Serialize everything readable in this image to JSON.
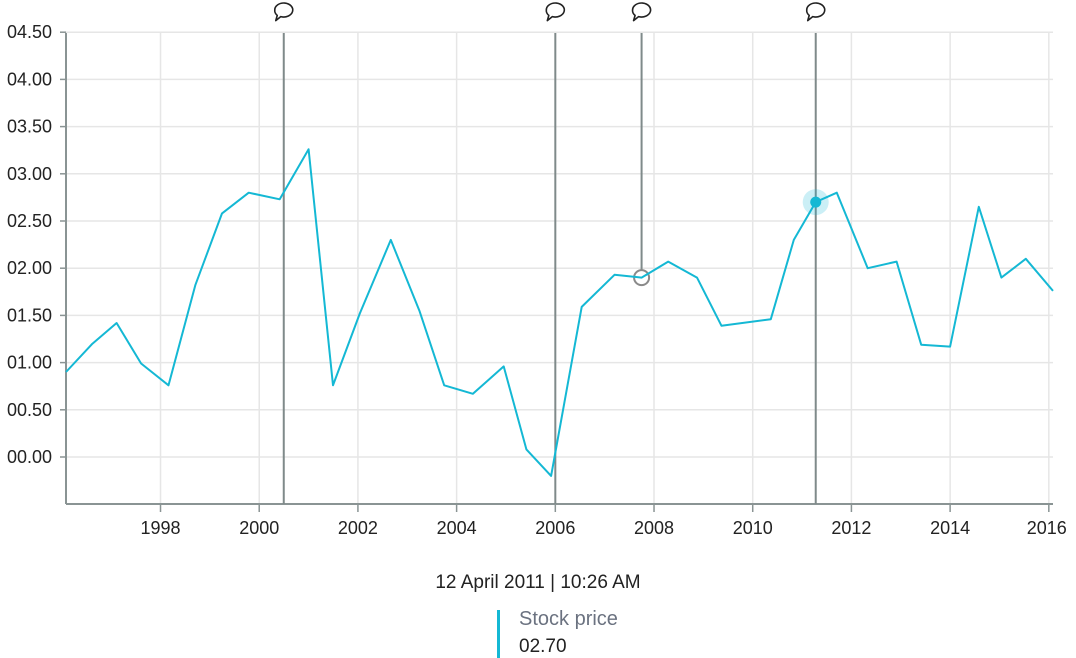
{
  "chart_data": {
    "type": "line",
    "title": "",
    "xlabel": "",
    "ylabel": "",
    "x_ticks": [
      "1998",
      "2000",
      "2002",
      "2004",
      "2006",
      "2008",
      "2010",
      "2012",
      "2014",
      "2016"
    ],
    "y_ticks": [
      "00.00",
      "00.50",
      "01.00",
      "01.50",
      "02.00",
      "02.50",
      "03.00",
      "03.50",
      "04.00",
      "04.50"
    ],
    "xlim": [
      "1996-02-01",
      "2016-02-01"
    ],
    "ylim": [
      -0.5,
      4.5
    ],
    "grid": true,
    "series": [
      {
        "name": "Stock price",
        "color": "#14b8d4",
        "points": [
          {
            "x": "1996-02-01",
            "y": 0.9
          },
          {
            "x": "1996-08-15",
            "y": 1.2
          },
          {
            "x": "1997-02-10",
            "y": 1.42
          },
          {
            "x": "1997-08-10",
            "y": 0.99
          },
          {
            "x": "1998-03-01",
            "y": 0.76
          },
          {
            "x": "1998-09-15",
            "y": 1.82
          },
          {
            "x": "1999-04-01",
            "y": 2.58
          },
          {
            "x": "1999-10-15",
            "y": 2.8
          },
          {
            "x": "2000-06-01",
            "y": 2.73
          },
          {
            "x": "2001-01-01",
            "y": 3.26
          },
          {
            "x": "2001-07-01",
            "y": 0.76
          },
          {
            "x": "2002-01-15",
            "y": 1.52
          },
          {
            "x": "2002-09-01",
            "y": 2.3
          },
          {
            "x": "2003-04-01",
            "y": 1.55
          },
          {
            "x": "2003-10-01",
            "y": 0.76
          },
          {
            "x": "2004-05-01",
            "y": 0.67
          },
          {
            "x": "2004-12-15",
            "y": 0.96
          },
          {
            "x": "2005-06-01",
            "y": 0.08
          },
          {
            "x": "2005-12-01",
            "y": -0.2
          },
          {
            "x": "2006-07-15",
            "y": 1.59
          },
          {
            "x": "2007-03-15",
            "y": 1.93
          },
          {
            "x": "2007-10-01",
            "y": 1.9
          },
          {
            "x": "2008-04-15",
            "y": 2.07
          },
          {
            "x": "2008-11-15",
            "y": 1.9
          },
          {
            "x": "2009-05-15",
            "y": 1.39
          },
          {
            "x": "2010-05-15",
            "y": 1.46
          },
          {
            "x": "2010-11-01",
            "y": 2.3
          },
          {
            "x": "2011-04-12",
            "y": 2.7
          },
          {
            "x": "2011-09-15",
            "y": 2.8
          },
          {
            "x": "2012-05-01",
            "y": 2.0
          },
          {
            "x": "2012-12-01",
            "y": 2.07
          },
          {
            "x": "2013-06-01",
            "y": 1.19
          },
          {
            "x": "2014-01-01",
            "y": 1.17
          },
          {
            "x": "2014-08-01",
            "y": 2.65
          },
          {
            "x": "2015-01-15",
            "y": 1.9
          },
          {
            "x": "2015-07-15",
            "y": 2.1
          },
          {
            "x": "2016-02-01",
            "y": 1.76
          }
        ]
      }
    ],
    "annotations": [
      {
        "x": "2000-07-01",
        "icon": "speech-bubble-icon"
      },
      {
        "x": "2006-01-01",
        "icon": "speech-bubble-icon",
        "marker_y": -0.2
      },
      {
        "x": "2007-10-01",
        "icon": "speech-bubble-icon",
        "marker_y": 1.9
      },
      {
        "x": "2011-04-12",
        "icon": "speech-bubble-icon"
      }
    ],
    "highlight": {
      "x": "2011-04-12",
      "y": 2.7
    }
  },
  "tooltip": {
    "date": "12 April 2011 | 10:26 AM",
    "series_name": "Stock price",
    "value": "02.70"
  }
}
